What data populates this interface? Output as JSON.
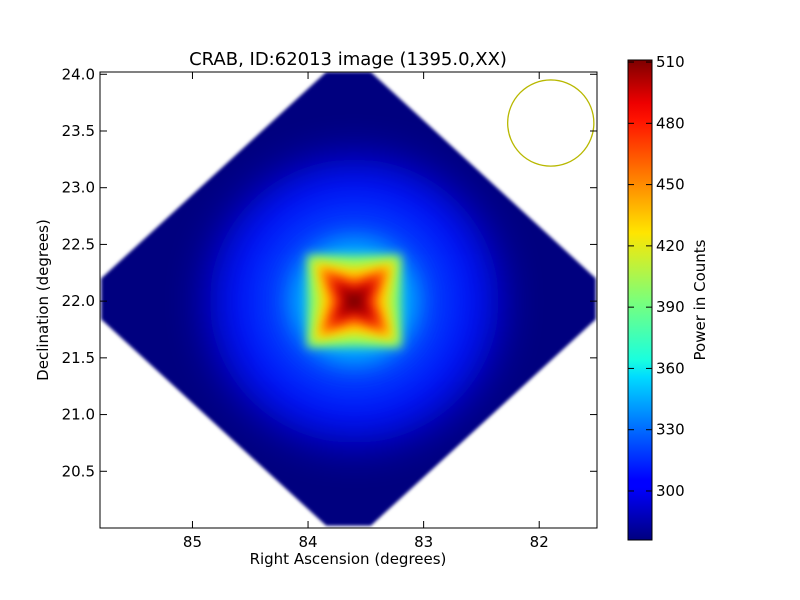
{
  "chart_data": {
    "type": "heatmap",
    "title": "CRAB, ID:62013 image (1395.0,XX)",
    "xlabel": "Right Ascension (degrees)",
    "ylabel": "Declination (degrees)",
    "xlim": [
      85.8,
      81.5
    ],
    "ylim": [
      20.0,
      24.02
    ],
    "x_inverted": true,
    "xticks": [
      85,
      84,
      83,
      82
    ],
    "xtick_labels": [
      "85",
      "84",
      "83",
      "82"
    ],
    "yticks": [
      20.5,
      21.0,
      21.5,
      22.0,
      22.5,
      23.0,
      23.5,
      24.0
    ],
    "ytick_labels": [
      "20.5",
      "21.0",
      "21.5",
      "22.0",
      "22.5",
      "23.0",
      "23.5",
      "24.0"
    ],
    "image": {
      "background_value": 276,
      "peak_value": 510,
      "source_center": [
        83.6,
        22.0
      ],
      "footprint_center": [
        83.65,
        22.02
      ],
      "footprint_half_extent_deg": 2.0
    },
    "beam_circle": {
      "center": [
        81.9,
        23.57
      ],
      "radius_deg": 0.38,
      "color": "#b8b800"
    },
    "colorbar": {
      "label": "Power in Counts",
      "colormap": "jet",
      "vmin": 276,
      "vmax": 511,
      "ticks": [
        300,
        330,
        360,
        390,
        420,
        450,
        480,
        510
      ],
      "tick_labels": [
        "300",
        "330",
        "360",
        "390",
        "420",
        "450",
        "480",
        "510"
      ]
    },
    "grid": false
  }
}
